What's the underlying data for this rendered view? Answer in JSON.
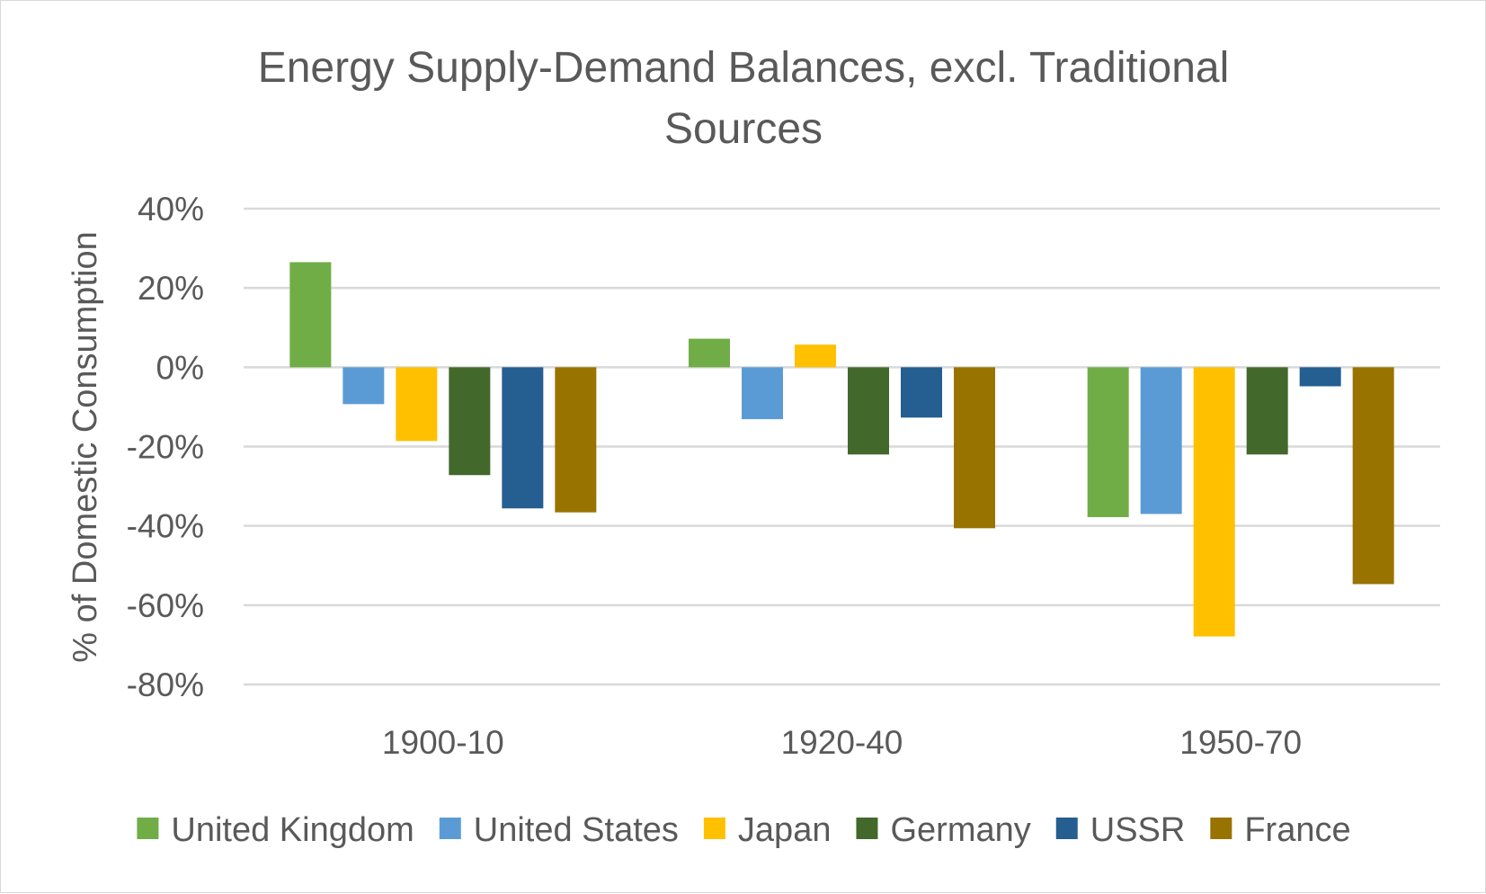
{
  "chart_data": {
    "type": "bar",
    "title_lines": [
      "Energy Supply-Demand Balances, excl. Traditional",
      "Sources"
    ],
    "xlabel": "",
    "ylabel": "% of Domestic Consumption",
    "ylim": [
      -80,
      40
    ],
    "yticks": [
      40,
      20,
      0,
      -20,
      -40,
      -60,
      -80
    ],
    "ytick_labels": [
      "40%",
      "20%",
      "0%",
      "-20%",
      "-40%",
      "-60%",
      "-80%"
    ],
    "grid": true,
    "legend_position": "bottom",
    "categories": [
      "1900-10",
      "1920-40",
      "1950-70"
    ],
    "series": [
      {
        "name": "United Kingdom",
        "color": "#70ad47",
        "values": [
          26.5,
          7.2,
          -37.8
        ]
      },
      {
        "name": "United States",
        "color": "#5b9bd5",
        "values": [
          -9.3,
          -13.1,
          -37.0
        ]
      },
      {
        "name": "Japan",
        "color": "#ffc000",
        "values": [
          -18.6,
          5.7,
          -67.9
        ]
      },
      {
        "name": "Germany",
        "color": "#43682b",
        "values": [
          -27.2,
          -22.0,
          -22.0
        ]
      },
      {
        "name": "USSR",
        "color": "#255e91",
        "values": [
          -35.6,
          -12.7,
          -4.8
        ]
      },
      {
        "name": "France",
        "color": "#997300",
        "values": [
          -36.6,
          -40.6,
          -54.7
        ]
      }
    ]
  }
}
